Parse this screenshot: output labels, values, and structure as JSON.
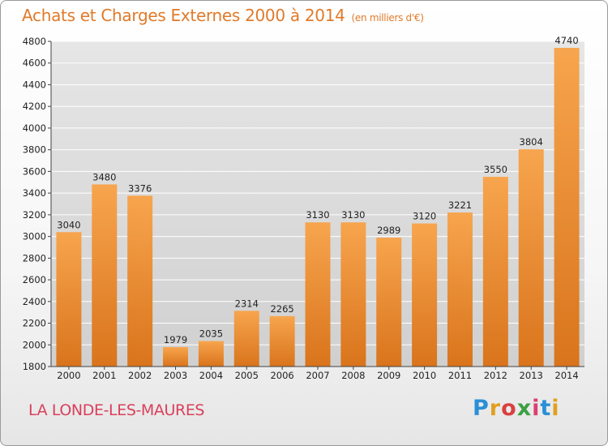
{
  "header": {
    "title": "Achats et Charges Externes 2000 à 2014",
    "subtitle": "(en milliers d'€)"
  },
  "footer": {
    "city": "LA LONDE-LES-MAURES",
    "logo_letters": [
      "P",
      "r",
      "o",
      "x",
      "i",
      "t",
      "i"
    ],
    "logo_colors": [
      "#2a8fd6",
      "#e0a020",
      "#d94040",
      "#3aa040",
      "#d94070",
      "#2a8fd6",
      "#e0a020"
    ]
  },
  "chart_data": {
    "type": "bar",
    "title": "Achats et Charges Externes 2000 à 2014",
    "subtitle": "(en milliers d'€)",
    "categories": [
      "2000",
      "2001",
      "2002",
      "2003",
      "2004",
      "2005",
      "2006",
      "2007",
      "2008",
      "2009",
      "2010",
      "2011",
      "2012",
      "2013",
      "2014"
    ],
    "values": [
      3040,
      3480,
      3376,
      1979,
      2035,
      2314,
      2265,
      3130,
      3130,
      2989,
      3120,
      3221,
      3550,
      3804,
      4740
    ],
    "ylim": [
      1800,
      4800
    ],
    "yticks": [
      1800,
      2000,
      2200,
      2400,
      2600,
      2800,
      3000,
      3200,
      3400,
      3600,
      3800,
      4000,
      4200,
      4400,
      4600,
      4800
    ],
    "grid": true,
    "colors": {
      "bar_top": "#f7a54e",
      "bar_bottom": "#d9741c",
      "grid": "#ffffff",
      "plot_bg": "#dcdcdc"
    }
  }
}
